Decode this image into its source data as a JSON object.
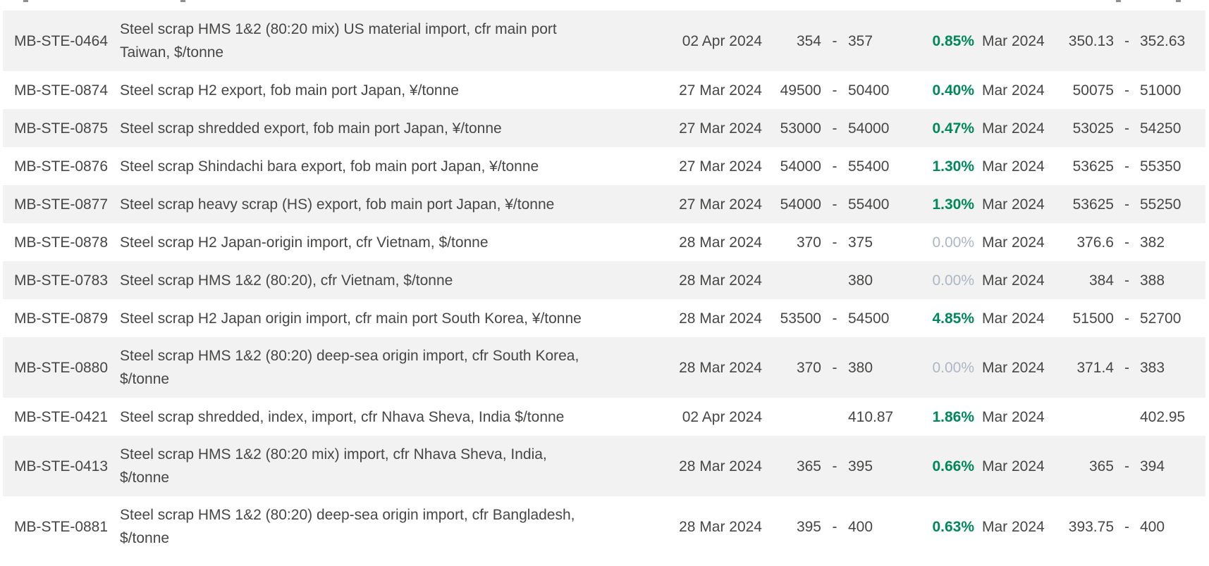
{
  "ui": {
    "type": "commodity-price-table",
    "range_separator": "-",
    "colors": {
      "positive_change": "#00875A",
      "zero_change": "#AEB6C3",
      "row_stripe": "#F2F2F2",
      "text": "#464645"
    }
  },
  "table": {
    "rows": [
      {
        "id": "MB-STE-0464",
        "description": "Steel scrap HMS 1&2 (80:20 mix) US material import, cfr main port Taiwan, $/tonne",
        "date": "02 Apr 2024",
        "low": "354",
        "high": "357",
        "change": "0.85%",
        "change_is_zero": false,
        "month": "Mar 2024",
        "month_low": "350.13",
        "month_high": "352.63"
      },
      {
        "id": "MB-STE-0874",
        "description": "Steel scrap H2 export, fob main port Japan, ¥/tonne",
        "date": "27 Mar 2024",
        "low": "49500",
        "high": "50400",
        "change": "0.40%",
        "change_is_zero": false,
        "month": "Mar 2024",
        "month_low": "50075",
        "month_high": "51000"
      },
      {
        "id": "MB-STE-0875",
        "description": "Steel scrap shredded export, fob main port Japan, ¥/tonne",
        "date": "27 Mar 2024",
        "low": "53000",
        "high": "54000",
        "change": "0.47%",
        "change_is_zero": false,
        "month": "Mar 2024",
        "month_low": "53025",
        "month_high": "54250"
      },
      {
        "id": "MB-STE-0876",
        "description": "Steel scrap Shindachi bara export, fob main port Japan, ¥/tonne",
        "date": "27 Mar 2024",
        "low": "54000",
        "high": "55400",
        "change": "1.30%",
        "change_is_zero": false,
        "month": "Mar 2024",
        "month_low": "53625",
        "month_high": "55350"
      },
      {
        "id": "MB-STE-0877",
        "description": "Steel scrap heavy scrap (HS) export, fob main port Japan, ¥/tonne",
        "date": "27 Mar 2024",
        "low": "54000",
        "high": "55400",
        "change": "1.30%",
        "change_is_zero": false,
        "month": "Mar 2024",
        "month_low": "53625",
        "month_high": "55250"
      },
      {
        "id": "MB-STE-0878",
        "description": "Steel scrap H2 Japan-origin import, cfr Vietnam, $/tonne",
        "date": "28 Mar 2024",
        "low": "370",
        "high": "375",
        "change": "0.00%",
        "change_is_zero": true,
        "month": "Mar 2024",
        "month_low": "376.6",
        "month_high": "382"
      },
      {
        "id": "MB-STE-0783",
        "description": "Steel scrap HMS 1&2 (80:20), cfr Vietnam, $/tonne",
        "date": "28 Mar 2024",
        "low": "",
        "high": "380",
        "change": "0.00%",
        "change_is_zero": true,
        "month": "Mar 2024",
        "month_low": "384",
        "month_high": "388"
      },
      {
        "id": "MB-STE-0879",
        "description": "Steel scrap H2 Japan origin import, cfr main port South Korea, ¥/tonne",
        "date": "28 Mar 2024",
        "low": "53500",
        "high": "54500",
        "change": "4.85%",
        "change_is_zero": false,
        "month": "Mar 2024",
        "month_low": "51500",
        "month_high": "52700"
      },
      {
        "id": "MB-STE-0880",
        "description": "Steel scrap HMS 1&2 (80:20) deep-sea origin import, cfr South Korea, $/tonne",
        "date": "28 Mar 2024",
        "low": "370",
        "high": "380",
        "change": "0.00%",
        "change_is_zero": true,
        "month": "Mar 2024",
        "month_low": "371.4",
        "month_high": "383"
      },
      {
        "id": "MB-STE-0421",
        "description": "Steel scrap shredded, index, import, cfr Nhava Sheva, India $/tonne",
        "date": "02 Apr 2024",
        "low": "",
        "high": "410.87",
        "change": "1.86%",
        "change_is_zero": false,
        "month": "Mar 2024",
        "month_low": "",
        "month_high": "402.95"
      },
      {
        "id": "MB-STE-0413",
        "description": "Steel scrap HMS 1&2 (80:20 mix) import, cfr Nhava Sheva, India, $/tonne",
        "date": "28 Mar 2024",
        "low": "365",
        "high": "395",
        "change": "0.66%",
        "change_is_zero": false,
        "month": "Mar 2024",
        "month_low": "365",
        "month_high": "394"
      },
      {
        "id": "MB-STE-0881",
        "description": "Steel scrap HMS 1&2 (80:20) deep-sea origin import, cfr Bangladesh, $/tonne",
        "date": "28 Mar 2024",
        "low": "395",
        "high": "400",
        "change": "0.63%",
        "change_is_zero": false,
        "month": "Mar 2024",
        "month_low": "393.75",
        "month_high": "400"
      }
    ]
  }
}
